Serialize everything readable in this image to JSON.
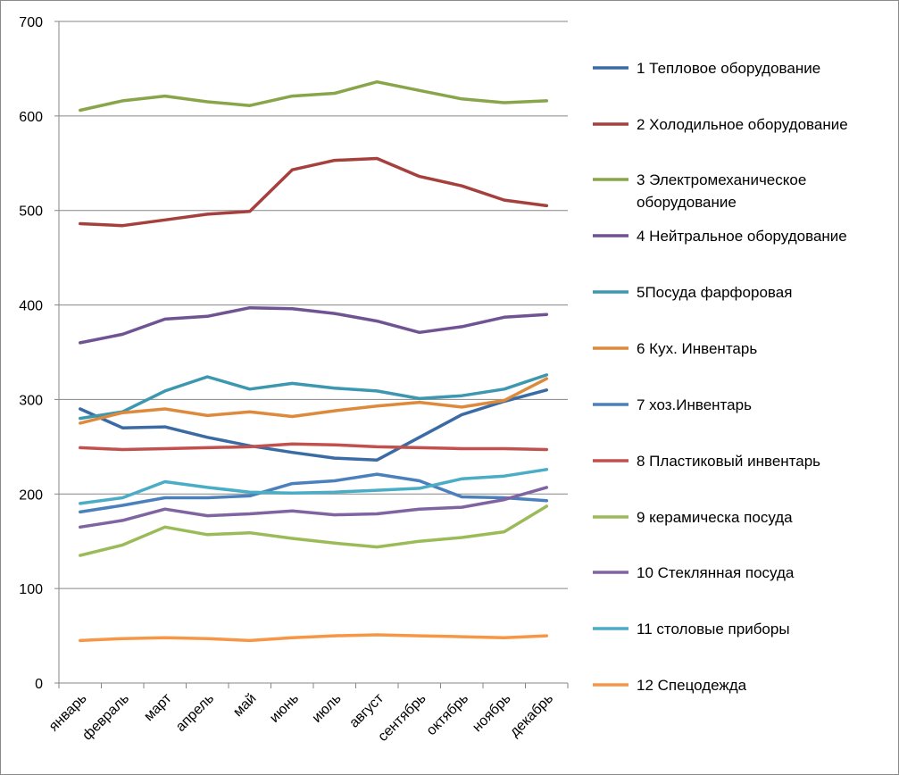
{
  "chart_data": {
    "type": "line",
    "title": "",
    "xlabel": "",
    "ylabel": "",
    "categories": [
      "январь",
      "февраль",
      "март",
      "апрель",
      "май",
      "июнь",
      "июль",
      "август",
      "сентябрь",
      "октябрь",
      "ноябрь",
      "декабрь"
    ],
    "ylim": [
      0,
      700
    ],
    "yticks": [
      "0",
      "100",
      "200",
      "300",
      "400",
      "500",
      "600",
      "700"
    ],
    "grid": true,
    "legend_position": "right",
    "series": [
      {
        "legend_lines": [
          "1 Тепловое оборудование"
        ],
        "color": "#3A6BA5",
        "values": [
          290,
          270,
          271,
          260,
          251,
          244,
          238,
          236,
          260,
          284,
          298,
          310
        ]
      },
      {
        "legend_lines": [
          "2 Холодильное оборудование"
        ],
        "color": "#A5403D",
        "values": [
          486,
          484,
          490,
          496,
          499,
          543,
          553,
          555,
          536,
          526,
          511,
          505
        ]
      },
      {
        "legend_lines": [
          "3 Электромеханическое",
          "оборудование"
        ],
        "color": "#88A54A",
        "values": [
          606,
          616,
          621,
          615,
          611,
          621,
          624,
          636,
          627,
          618,
          614,
          616
        ]
      },
      {
        "legend_lines": [
          "4 Нейтральное оборудование"
        ],
        "color": "#6F5392",
        "values": [
          360,
          369,
          385,
          388,
          397,
          396,
          391,
          383,
          371,
          377,
          387,
          390
        ]
      },
      {
        "legend_lines": [
          "5Посуда фарфоровая"
        ],
        "color": "#3C97AF",
        "values": [
          280,
          287,
          309,
          324,
          311,
          317,
          312,
          309,
          301,
          304,
          311,
          326
        ]
      },
      {
        "legend_lines": [
          "6 Кух. Инвентарь"
        ],
        "color": "#DD8A3D",
        "values": [
          275,
          286,
          290,
          283,
          287,
          282,
          288,
          293,
          297,
          292,
          299,
          322
        ]
      },
      {
        "legend_lines": [
          "7 хоз.Инвентарь"
        ],
        "color": "#4A81BD",
        "values": [
          181,
          188,
          196,
          196,
          198,
          211,
          214,
          221,
          214,
          197,
          196,
          193
        ]
      },
      {
        "legend_lines": [
          "8 Пластиковый инвентарь"
        ],
        "color": "#C2504D",
        "values": [
          249,
          247,
          248,
          249,
          250,
          253,
          252,
          250,
          249,
          248,
          248,
          247
        ]
      },
      {
        "legend_lines": [
          "9 керамическа посуда"
        ],
        "color": "#9BBB59",
        "values": [
          135,
          146,
          165,
          157,
          159,
          153,
          148,
          144,
          150,
          154,
          160,
          187
        ]
      },
      {
        "legend_lines": [
          "10 Стеклянная посуда"
        ],
        "color": "#8064A2",
        "values": [
          165,
          172,
          184,
          177,
          179,
          182,
          178,
          179,
          184,
          186,
          194,
          207
        ]
      },
      {
        "legend_lines": [
          "11 столовые приборы"
        ],
        "color": "#4BACC6",
        "values": [
          190,
          196,
          213,
          207,
          202,
          201,
          202,
          204,
          206,
          216,
          219,
          226
        ]
      },
      {
        "legend_lines": [
          "12 Спецодежда"
        ],
        "color": "#F79646",
        "values": [
          45,
          47,
          48,
          47,
          45,
          48,
          50,
          51,
          50,
          49,
          48,
          50
        ]
      }
    ]
  }
}
